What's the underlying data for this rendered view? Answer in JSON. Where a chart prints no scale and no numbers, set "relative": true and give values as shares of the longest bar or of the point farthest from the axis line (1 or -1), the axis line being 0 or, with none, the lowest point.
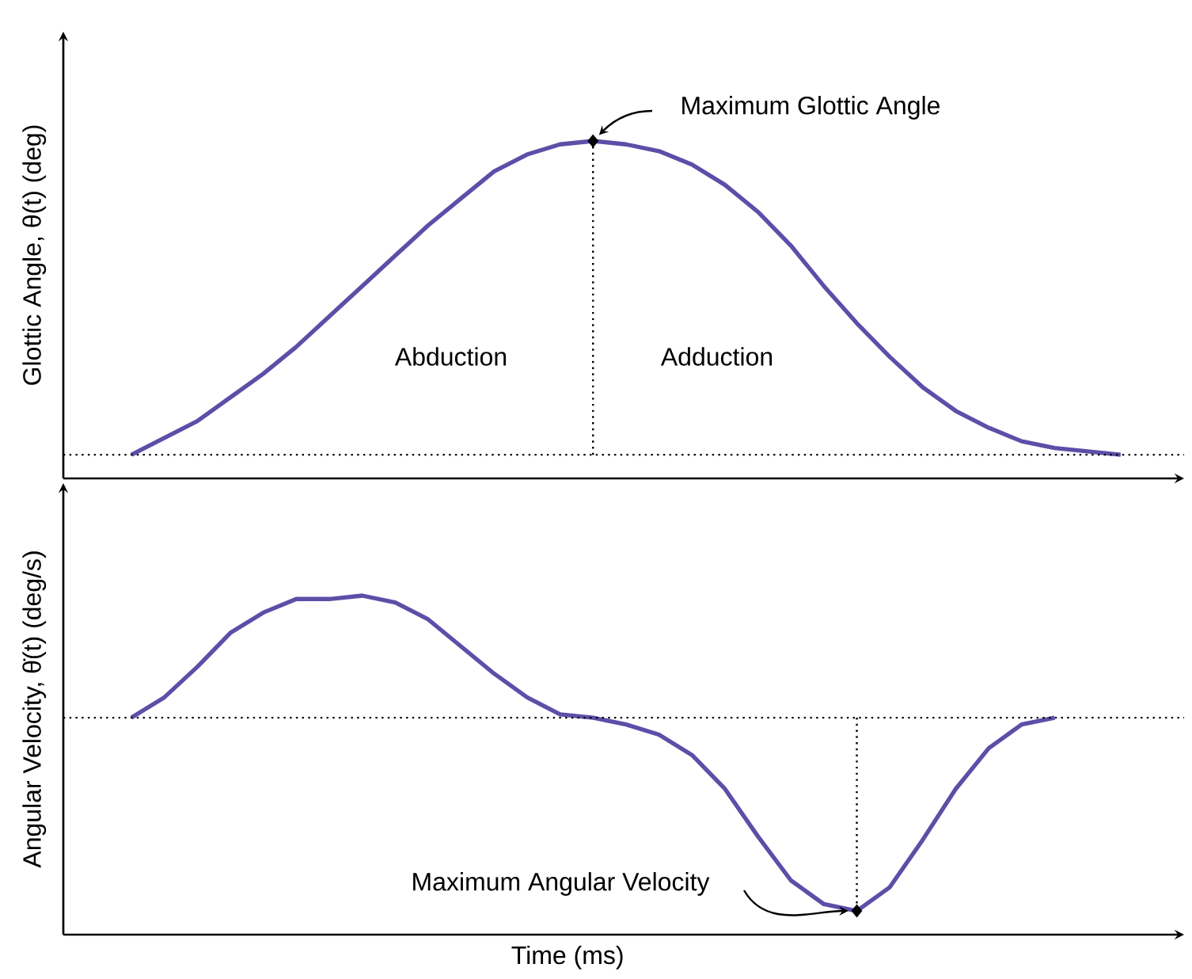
{
  "chart_data": [
    {
      "type": "line",
      "relative": true,
      "ylabel": "Glottic Angle, θ(t) (deg)",
      "line_style": "solid",
      "marker": "none",
      "categories": [
        null,
        null,
        null,
        null,
        null,
        null,
        null,
        null,
        null,
        null,
        null,
        null,
        null,
        null,
        null,
        null,
        null,
        null,
        null,
        null,
        null,
        null,
        null,
        null,
        null,
        null,
        null,
        null,
        null,
        null,
        null
      ],
      "series": [
        {
          "color": "#5b4fa8",
          "values": [
            0.07,
            0.12,
            0.17,
            0.24,
            0.31,
            0.39,
            0.48,
            0.57,
            0.66,
            0.75,
            0.83,
            0.91,
            0.96,
            0.99,
            1.0,
            0.99,
            0.97,
            0.93,
            0.87,
            0.79,
            0.69,
            0.57,
            0.46,
            0.36,
            0.27,
            0.2,
            0.15,
            0.11,
            0.09,
            0.08,
            0.07
          ]
        }
      ],
      "ref_lines": [
        {
          "axis": "y",
          "value": 0.07,
          "line_style": "dotted"
        }
      ],
      "annotations": [
        "Abduction",
        "Adduction",
        "Maximum Glottic Angle"
      ]
    },
    {
      "type": "line",
      "relative": true,
      "ylabel": "Angular Velocity, θ̇(t) (deg/s)",
      "xlabel": "Time (ms)",
      "line_style": "solid",
      "marker": "none",
      "categories": [
        null,
        null,
        null,
        null,
        null,
        null,
        null,
        null,
        null,
        null,
        null,
        null,
        null,
        null,
        null,
        null,
        null,
        null,
        null,
        null,
        null,
        null,
        null,
        null,
        null,
        null,
        null,
        null,
        null
      ],
      "series": [
        {
          "color": "#5b4fa8",
          "values": [
            0.64,
            0.7,
            0.79,
            0.89,
            0.95,
            0.99,
            0.99,
            1.0,
            0.98,
            0.93,
            0.85,
            0.77,
            0.7,
            0.65,
            0.64,
            0.62,
            0.59,
            0.53,
            0.43,
            0.29,
            0.16,
            0.09,
            0.07,
            0.14,
            0.28,
            0.43,
            0.55,
            0.62,
            0.64
          ]
        }
      ],
      "ref_lines": [
        {
          "axis": "y",
          "value": 0.64,
          "line_style": "dotted"
        }
      ],
      "annotations": [
        "Maximum Angular Velocity"
      ]
    }
  ]
}
